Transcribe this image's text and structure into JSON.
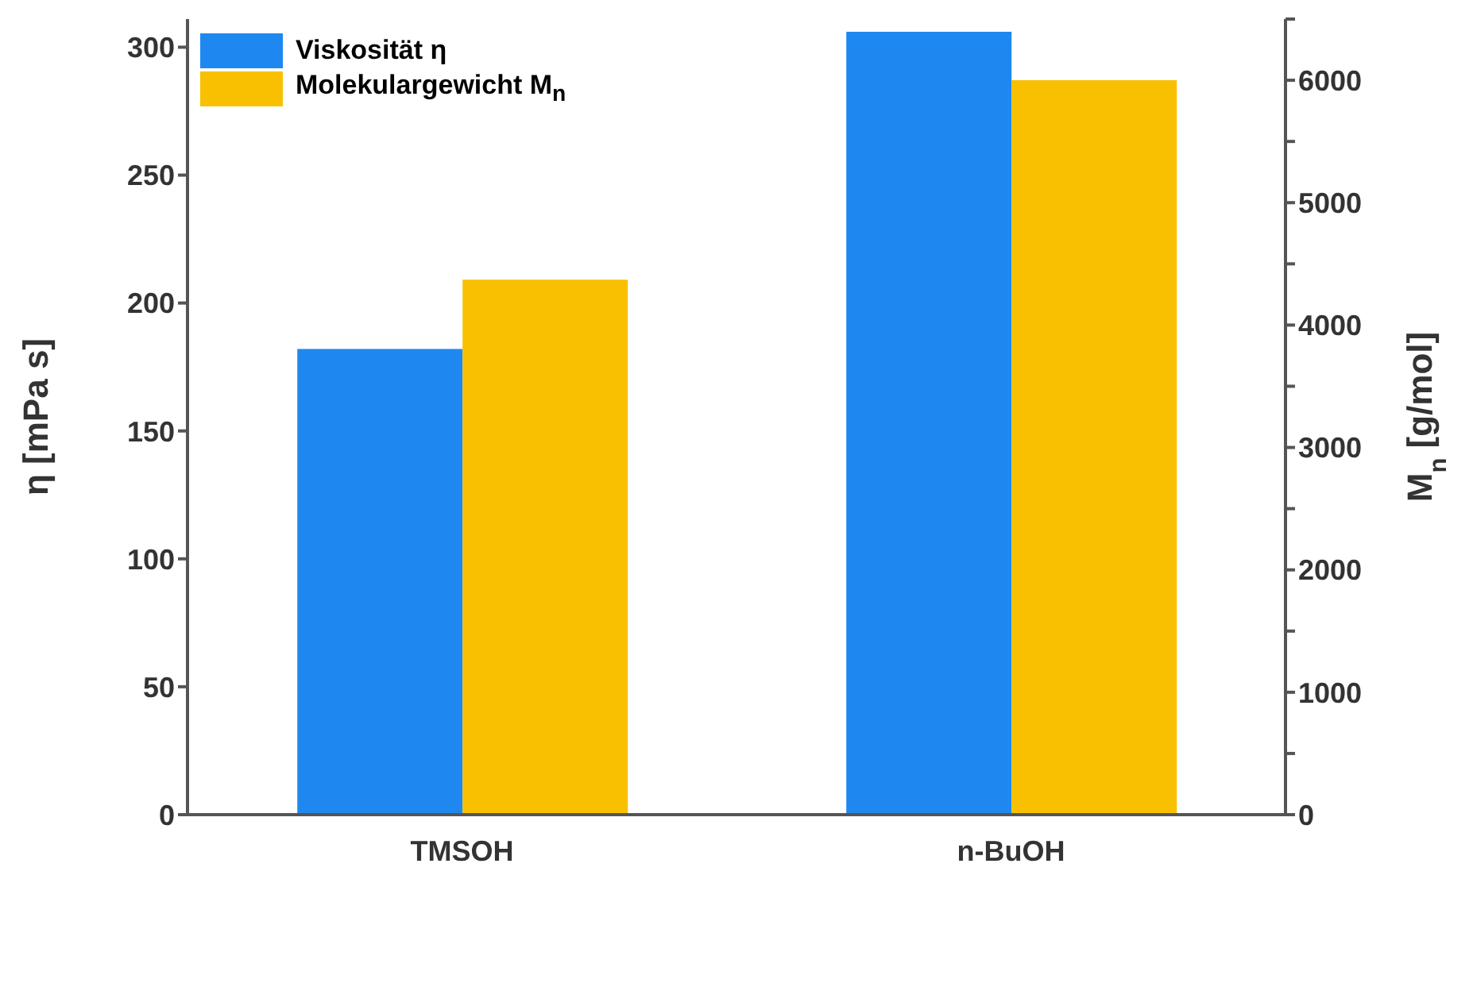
{
  "chart_data": {
    "type": "bar",
    "categories": [
      "TMSOH",
      "n-BuOH"
    ],
    "series": [
      {
        "name": "Viskosität  η",
        "color": "#1e88f0",
        "values": [
          182,
          306
        ]
      },
      {
        "name": "Molekulargewicht  M$_{n}$",
        "color": "#f8c000",
        "values": [
          4370,
          6000
        ],
        "axis": "y2"
      }
    ],
    "ylabel": "η [mPa s]",
    "y2label": "M$_{n}$ [g/mol]",
    "ylim": [
      0,
      311
    ],
    "yticks": [
      0,
      50,
      100,
      150,
      200,
      250,
      300
    ],
    "y2lim": [
      0,
      6500
    ],
    "y2ticks": [
      0,
      {
        "value": 500,
        "label": null
      },
      1000,
      {
        "value": 1500,
        "label": null
      },
      2000,
      {
        "value": 2500,
        "label": null
      },
      3000,
      {
        "value": 3500,
        "label": null
      },
      4000,
      {
        "value": 4500,
        "label": null
      },
      5000,
      {
        "value": 5500,
        "label": null
      },
      6000,
      {
        "value": 6500,
        "label": null
      }
    ],
    "grid": false,
    "legend": "top left"
  }
}
